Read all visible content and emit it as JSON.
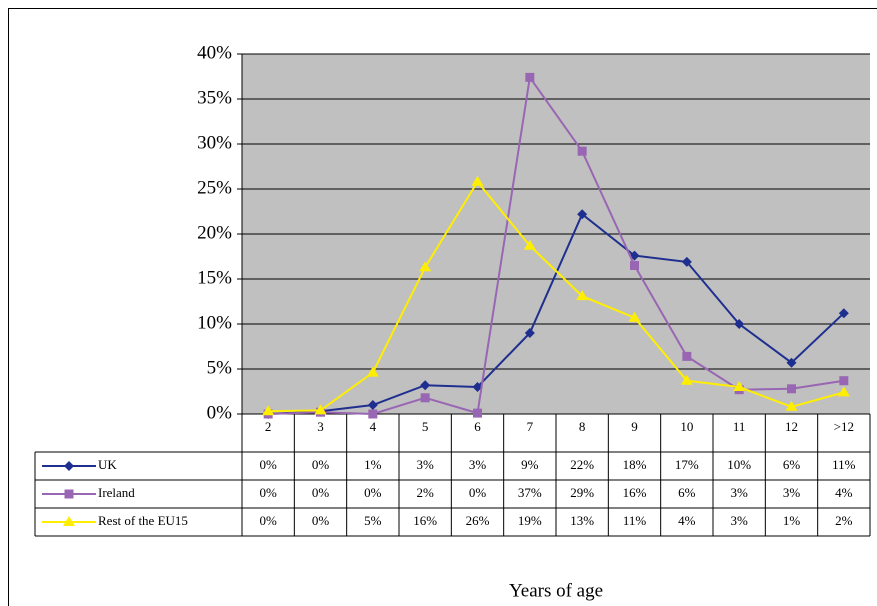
{
  "chart_data": {
    "type": "line",
    "x_label": "Years of age",
    "categories": [
      "2",
      "3",
      "4",
      "5",
      "6",
      "7",
      "8",
      "9",
      "10",
      "11",
      "12",
      ">12"
    ],
    "ylim": [
      0,
      40
    ],
    "yticks": [
      {
        "value": 0,
        "label": "0%"
      },
      {
        "value": 5,
        "label": "5%"
      },
      {
        "value": 10,
        "label": "10%"
      },
      {
        "value": 15,
        "label": "15%"
      },
      {
        "value": 20,
        "label": "20%"
      },
      {
        "value": 25,
        "label": "25%"
      },
      {
        "value": 30,
        "label": "30%"
      },
      {
        "value": 35,
        "label": "35%"
      },
      {
        "value": 40,
        "label": "40%"
      }
    ],
    "grid": true,
    "series": [
      {
        "name": "UK",
        "color": "#1f2f8f",
        "marker": "diamond",
        "values": [
          0,
          0.3,
          1,
          3.2,
          3,
          9,
          22.2,
          17.6,
          16.9,
          10,
          5.7,
          11.2
        ],
        "value_labels": [
          "0%",
          "0%",
          "1%",
          "3%",
          "3%",
          "9%",
          "22%",
          "18%",
          "17%",
          "10%",
          "6%",
          "11%"
        ]
      },
      {
        "name": "Ireland",
        "color": "#9966b3",
        "marker": "square",
        "values": [
          0,
          0.2,
          0,
          1.8,
          0.1,
          37.4,
          29.2,
          16.5,
          6.4,
          2.7,
          2.8,
          3.7
        ],
        "value_labels": [
          "0%",
          "0%",
          "0%",
          "2%",
          "0%",
          "37%",
          "29%",
          "16%",
          "6%",
          "3%",
          "3%",
          "4%"
        ]
      },
      {
        "name": "Rest of the EU15",
        "color": "#ffee00",
        "marker": "triangle",
        "values": [
          0.3,
          0.4,
          4.6,
          16.3,
          25.8,
          18.7,
          13.1,
          10.7,
          3.7,
          3.0,
          0.8,
          2.4
        ],
        "value_labels": [
          "0%",
          "0%",
          "5%",
          "16%",
          "26%",
          "19%",
          "13%",
          "11%",
          "4%",
          "3%",
          "1%",
          "2%"
        ]
      }
    ]
  }
}
